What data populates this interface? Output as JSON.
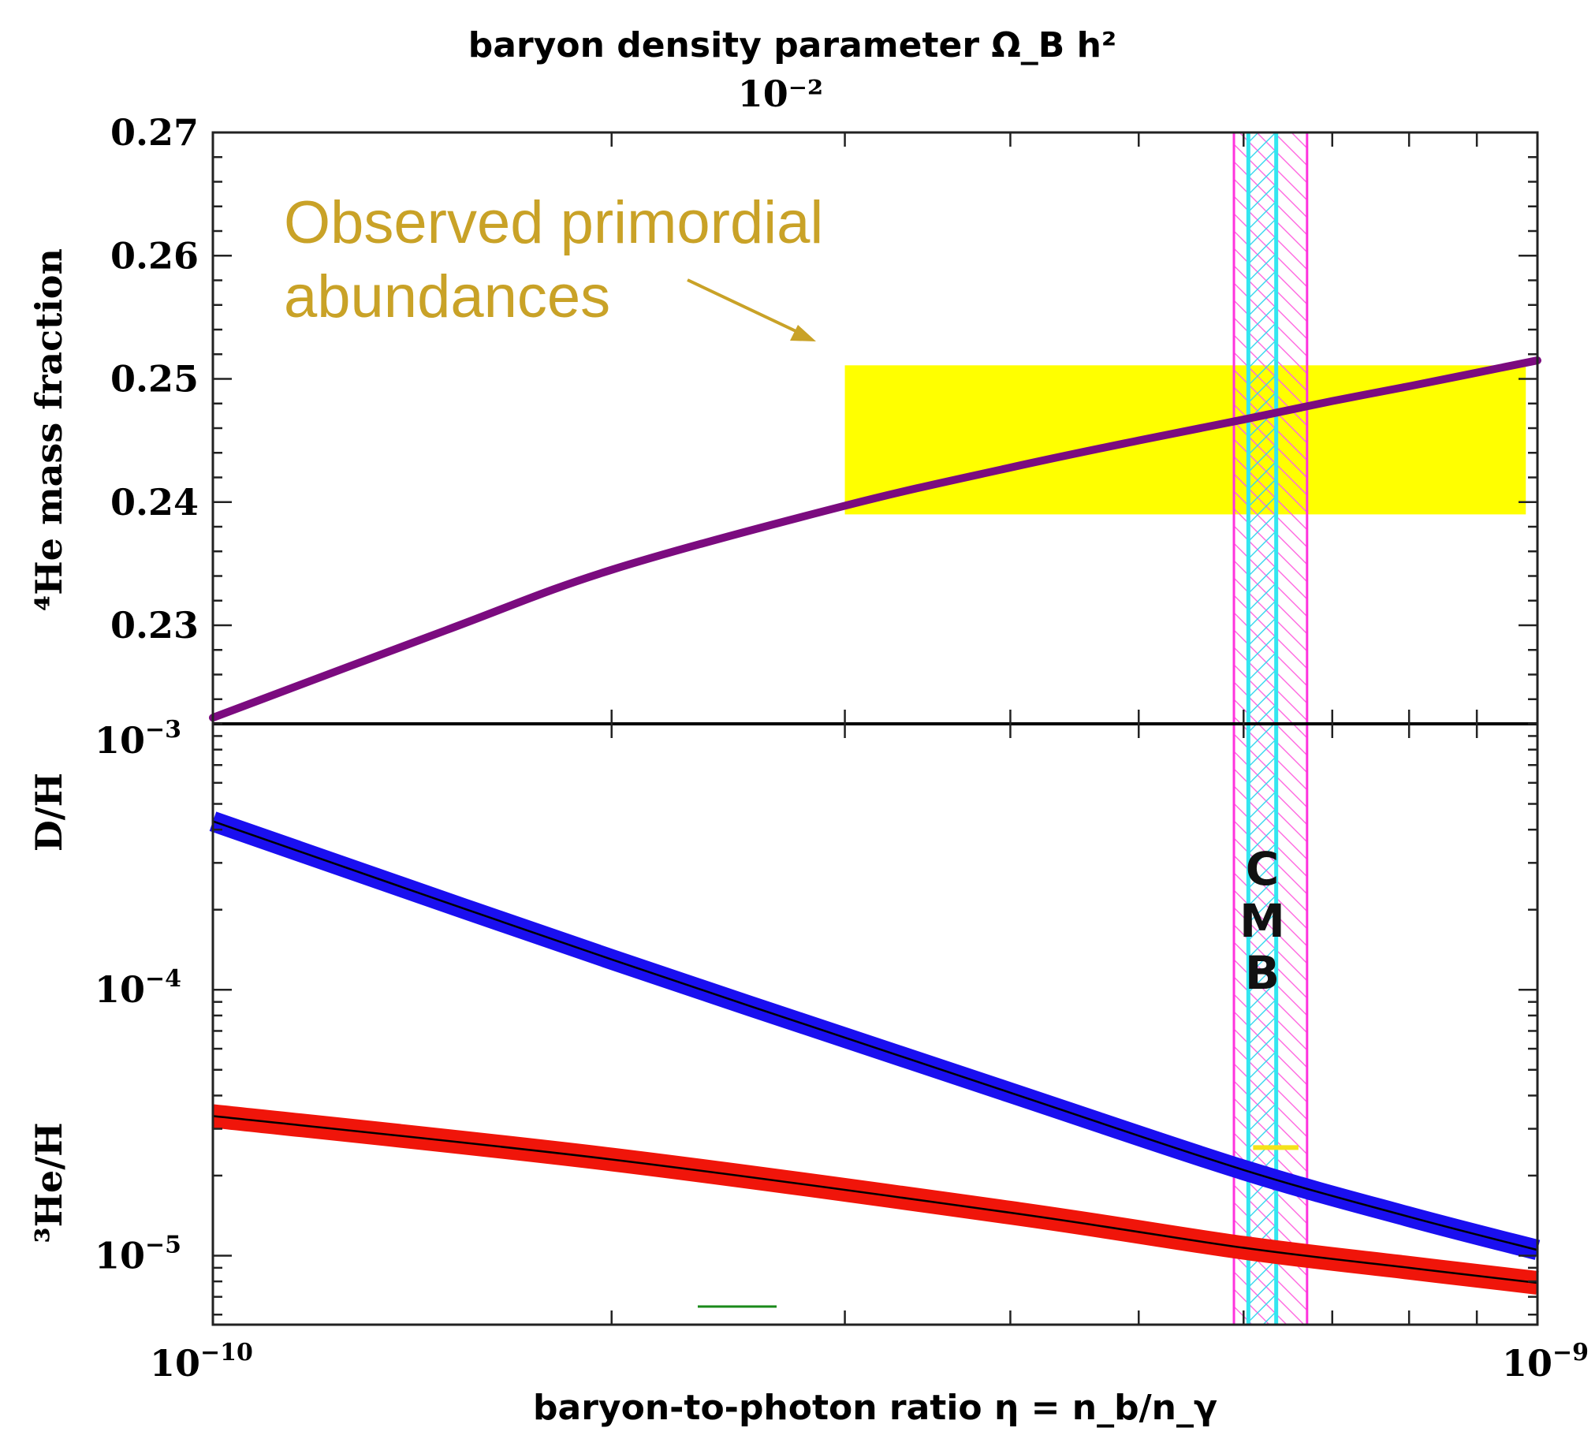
{
  "chart_data": [
    {
      "type": "line",
      "panel": "top",
      "title": "baryon density parameter Ω_B h²",
      "top_axis_tick": "10⁻²",
      "ylabel": "⁴He mass fraction",
      "ylim": [
        0.222,
        0.27
      ],
      "xscale": "log",
      "xlim": [
        1e-10,
        1e-09
      ],
      "yticks": [
        "0.27",
        "0.26",
        "0.25",
        "0.24",
        "0.23"
      ],
      "yticks_values": [
        0.27,
        0.26,
        0.25,
        0.24,
        0.23
      ],
      "series": [
        {
          "color": "#7b0b7f",
          "x": [
            1e-10,
            1.5e-10,
            2e-10,
            3e-10,
            4e-10,
            5e-10,
            6e-10,
            7e-10,
            8e-10,
            1e-09
          ],
          "y": [
            0.2225,
            0.2296,
            0.2345,
            0.2397,
            0.2428,
            0.245,
            0.2467,
            0.2482,
            0.2494,
            0.2515
          ]
        }
      ],
      "observed_band": {
        "x": [
          3e-10,
          9.8e-10
        ],
        "y": [
          0.239,
          0.2511
        ],
        "color": "#ffff00"
      },
      "annotation": {
        "line1": "Observed primordial",
        "line2": "abundances"
      }
    },
    {
      "type": "line",
      "panel": "bottom",
      "yscale": "log",
      "ylim": [
        5.5e-06,
        0.001
      ],
      "xscale": "log",
      "xlim": [
        1e-10,
        1e-09
      ],
      "yticks": [
        "10",
        "10",
        "10"
      ],
      "yticks_exp": [
        "−3",
        "−4",
        "−5"
      ],
      "xticks": [
        "10",
        "10"
      ],
      "xticks_exp": [
        "−10",
        "−9"
      ],
      "xlabel": "baryon-to-photon ratio η = n_b/n_γ",
      "ylabel_top": "D/H",
      "ylabel_bottom": "³He/H",
      "series": [
        {
          "name": "D/H",
          "color": "#1a0ff0",
          "x": [
            1e-10,
            2e-10,
            4e-10,
            6e-10,
            8e-10,
            1e-09
          ],
          "y": [
            0.00043,
            0.00013,
            4.1e-05,
            2.1e-05,
            1.4e-05,
            1.05e-05
          ]
        },
        {
          "name": "3He/H",
          "color": "#f0150a",
          "x": [
            1e-10,
            2e-10,
            4e-10,
            6e-10,
            8e-10,
            1e-09
          ],
          "y": [
            3.35e-05,
            2.3e-05,
            1.45e-05,
            1.07e-05,
            9e-06,
            7.9e-06
          ]
        }
      ],
      "dh_observed_marker": {
        "x": [
          6.1e-10,
          6.6e-10
        ],
        "y": 2.55e-05,
        "color": "#f4e21a"
      }
    }
  ],
  "cmb_band": {
    "label_letters": [
      "C",
      "M",
      "B"
    ],
    "outer_x": [
      5.9e-10,
      6.7e-10
    ],
    "inner_x": [
      6.05e-10,
      6.35e-10
    ],
    "outer_color": "#ff33dd",
    "inner_color": "#33e6f0"
  }
}
